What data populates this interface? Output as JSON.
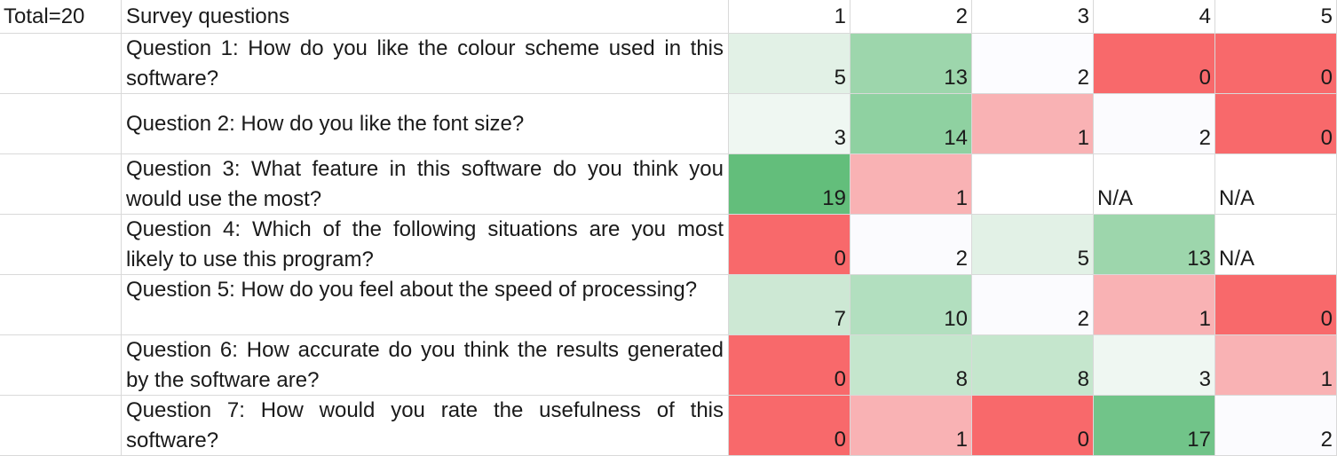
{
  "header": {
    "total": "Total=20",
    "title": "Survey questions",
    "columns": [
      "1",
      "2",
      "3",
      "4",
      "5"
    ]
  },
  "rows": [
    {
      "question": "Question 1: How do you like the colour scheme used in this software?",
      "values": [
        "5",
        "13",
        "2",
        "0",
        "0"
      ],
      "colors": [
        "#e2f1e6",
        "#9dd6ac",
        "#fcfcff",
        "#f8696b",
        "#f8696b"
      ]
    },
    {
      "question": "Question 2: How do you like the font size?",
      "values": [
        "3",
        "14",
        "1",
        "2",
        "0"
      ],
      "colors": [
        "#eff7f2",
        "#8fd1a1",
        "#f9b2b4",
        "#fbfbfe",
        "#f8696b"
      ]
    },
    {
      "question": "Question 3: What feature in this software do you think you would use the most?",
      "values": [
        "19",
        "1",
        "",
        "N/A",
        "N/A"
      ],
      "colors": [
        "#63be7b",
        "#f9b2b4",
        "#ffffff",
        "#ffffff",
        "#ffffff"
      ]
    },
    {
      "question": "Question 4: Which of the following situations are you most likely to use this program?",
      "values": [
        "0",
        "2",
        "5",
        "13",
        "N/A"
      ],
      "colors": [
        "#f8696b",
        "#fbfbfe",
        "#e2f1e6",
        "#9dd6ac",
        "#ffffff"
      ]
    },
    {
      "question": "Question 5: How do you feel about the speed of processing?",
      "values": [
        "7",
        "10",
        "2",
        "1",
        "0"
      ],
      "colors": [
        "#cde8d4",
        "#b2dfbf",
        "#fbfbfe",
        "#f9b2b4",
        "#f8696b"
      ]
    },
    {
      "question": "Question 6: How accurate do you think the results generated by the software are?",
      "values": [
        "0",
        "8",
        "8",
        "3",
        "1"
      ],
      "colors": [
        "#f8696b",
        "#c5e6cd",
        "#c5e6cd",
        "#eff7f2",
        "#f9b2b4"
      ]
    },
    {
      "question": "Question 7: How would you rate the usefulness of this software?",
      "values": [
        "0",
        "1",
        "0",
        "17",
        "2"
      ],
      "colors": [
        "#f8696b",
        "#f9b2b4",
        "#f8696b",
        "#71c489",
        "#fbfbfe"
      ]
    }
  ]
}
